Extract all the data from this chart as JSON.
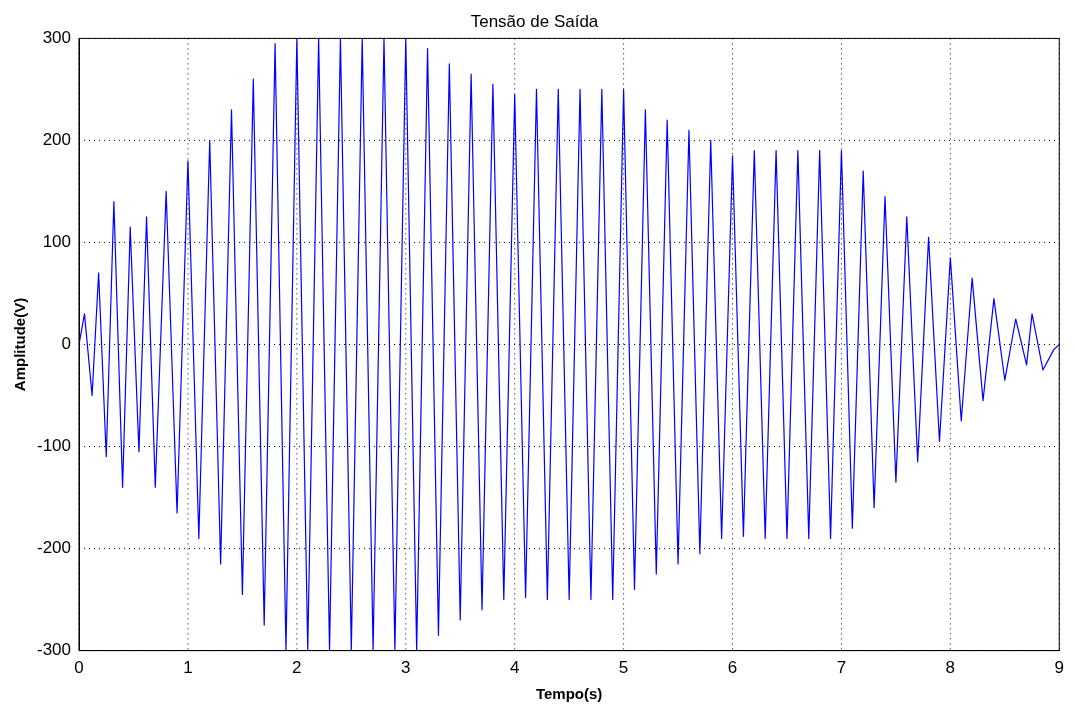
{
  "chart_data": {
    "type": "line",
    "title": "Tensão de Saída",
    "xlabel": "Tempo(s)",
    "ylabel": "Amplitude(V)",
    "xlim": [
      0,
      9
    ],
    "xticks": [
      0,
      1,
      2,
      3,
      4,
      5,
      6,
      7,
      8,
      9
    ],
    "ylim": [
      -300,
      300
    ],
    "yticks": [
      -300,
      -200,
      -100,
      0,
      100,
      200,
      300
    ],
    "grid": true,
    "legend": false,
    "marker": "none",
    "line_style": "solid",
    "series": [
      {
        "color": "#0000ff",
        "x": [
          0,
          0.05,
          0.12,
          0.18,
          0.25,
          0.32,
          0.4,
          0.47,
          0.55,
          0.62,
          0.7,
          0.8,
          0.9,
          1.0,
          1.1,
          1.2,
          1.3,
          1.4,
          1.5,
          1.6,
          1.7,
          1.8,
          1.9,
          2.0,
          2.1,
          2.2,
          2.3,
          2.4,
          2.5,
          2.6,
          2.7,
          2.8,
          2.9,
          3.0,
          3.1,
          3.2,
          3.3,
          3.4,
          3.5,
          3.6,
          3.7,
          3.8,
          3.9,
          4.0,
          4.1,
          4.2,
          4.3,
          4.4,
          4.5,
          4.6,
          4.7,
          4.8,
          4.9,
          5.0,
          5.1,
          5.2,
          5.3,
          5.4,
          5.5,
          5.6,
          5.7,
          5.8,
          5.9,
          6.0,
          6.1,
          6.2,
          6.3,
          6.4,
          6.5,
          6.6,
          6.7,
          6.8,
          6.9,
          7.0,
          7.1,
          7.2,
          7.3,
          7.4,
          7.5,
          7.6,
          7.7,
          7.8,
          7.9,
          8.0,
          8.1,
          8.2,
          8.3,
          8.4,
          8.5,
          8.6,
          8.7,
          8.75,
          8.85,
          8.95,
          9.0
        ],
        "values": [
          0,
          30,
          -50,
          70,
          -110,
          140,
          -140,
          115,
          -105,
          125,
          -140,
          150,
          -165,
          180,
          -190,
          200,
          -215,
          230,
          -245,
          260,
          -275,
          295,
          -300,
          300,
          -300,
          300,
          -300,
          300,
          -300,
          300,
          -300,
          300,
          -300,
          300,
          -300,
          290,
          -285,
          275,
          -270,
          265,
          -260,
          255,
          -250,
          245,
          -248,
          250,
          -250,
          250,
          -250,
          250,
          -250,
          250,
          -250,
          250,
          -240,
          230,
          -225,
          220,
          -215,
          210,
          -205,
          200,
          -190,
          185,
          -188,
          190,
          -190,
          190,
          -190,
          190,
          -190,
          190,
          -190,
          190,
          -180,
          170,
          -160,
          145,
          -135,
          125,
          -115,
          105,
          -95,
          85,
          -75,
          65,
          -55,
          45,
          -35,
          25,
          -20,
          30,
          -25,
          -5,
          0
        ]
      }
    ]
  }
}
